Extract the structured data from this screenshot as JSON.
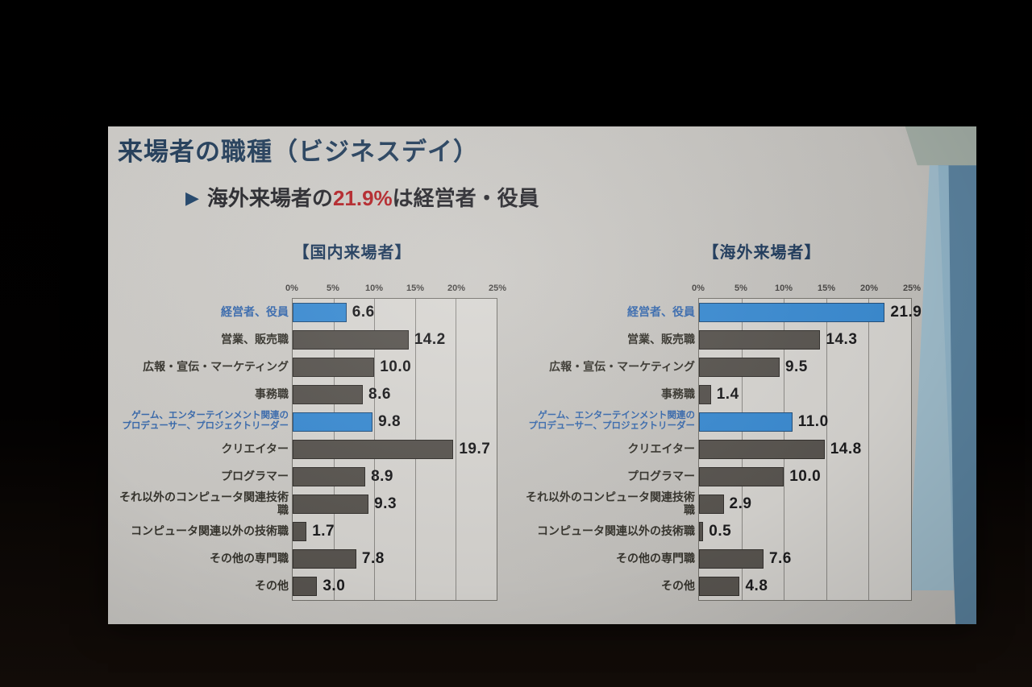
{
  "slide": {
    "title": "来場者の職種（ビジネスデイ）",
    "subtitle": {
      "arrow": "▶",
      "pre": "海外来場者の",
      "highlight": "21.9%",
      "post": "は経営者・役員"
    }
  },
  "colors": {
    "accent_bar": "#3c8dd4",
    "accent_bar_border": "#26517c",
    "default_bar": "#5a5651",
    "default_bar_border": "#35322f",
    "highlight_text": "#b5252a",
    "title_navy": "#27425f",
    "accent_label": "#3a6cb0"
  },
  "chart_data": [
    {
      "type": "bar",
      "orientation": "horizontal",
      "title": "【国内来場者】",
      "xlim": [
        0,
        25
      ],
      "ticks": [
        "0%",
        "5%",
        "10%",
        "15%",
        "20%",
        "25%"
      ],
      "grid": true,
      "categories": [
        "経営者、役員",
        "営業、販売職",
        "広報・宣伝・マーケティング",
        "事務職",
        "ゲーム、エンターテインメント関連の\nプロデューサー、プロジェクトリーダー",
        "クリエイター",
        "プログラマー",
        "それ以外のコンピュータ関連技術職",
        "コンピュータ関連以外の技術職",
        "その他の専門職",
        "その他"
      ],
      "values": [
        6.6,
        14.2,
        10.0,
        8.6,
        9.8,
        19.7,
        8.9,
        9.3,
        1.7,
        7.8,
        3.0
      ],
      "value_labels": [
        "6.6",
        "14.2",
        "10.0",
        "8.6",
        "9.8",
        "19.7",
        "8.9",
        "9.3",
        "1.7",
        "7.8",
        "3.0"
      ],
      "accent_indices": [
        0,
        4
      ],
      "small_label_indices": [
        4
      ]
    },
    {
      "type": "bar",
      "orientation": "horizontal",
      "title": "【海外来場者】",
      "xlim": [
        0,
        25
      ],
      "ticks": [
        "0%",
        "5%",
        "10%",
        "15%",
        "20%",
        "25%"
      ],
      "grid": true,
      "categories": [
        "経営者、役員",
        "営業、販売職",
        "広報・宣伝・マーケティング",
        "事務職",
        "ゲーム、エンターテインメント関連の\nプロデューサー、プロジェクトリーダー",
        "クリエイター",
        "プログラマー",
        "それ以外のコンピュータ関連技術職",
        "コンピュータ関連以外の技術職",
        "その他の専門職",
        "その他"
      ],
      "values": [
        21.9,
        14.3,
        9.5,
        1.4,
        11.0,
        14.8,
        10.0,
        2.9,
        0.5,
        7.6,
        4.8
      ],
      "value_labels": [
        "21.9",
        "14.3",
        "9.5",
        "1.4",
        "11.0",
        "14.8",
        "10.0",
        "2.9",
        "0.5",
        "7.6",
        "4.8"
      ],
      "accent_indices": [
        0,
        4
      ],
      "small_label_indices": [
        4
      ]
    }
  ]
}
